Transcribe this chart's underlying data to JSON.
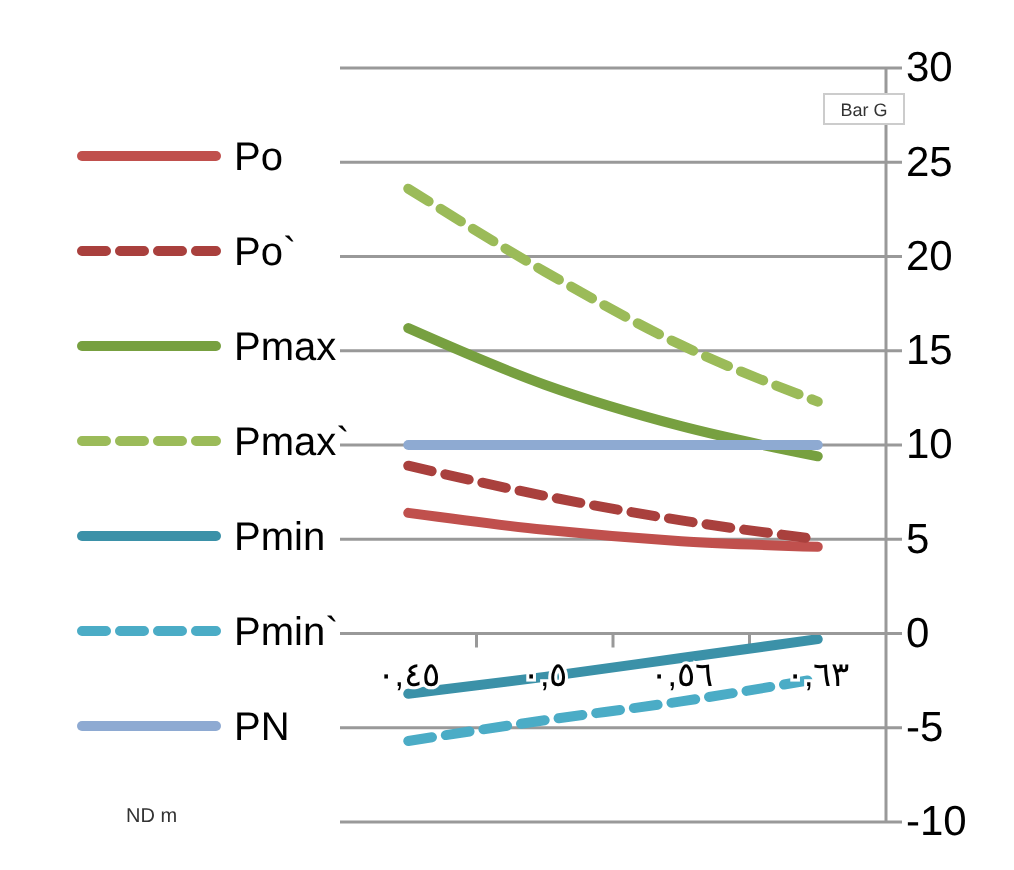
{
  "chart_data": {
    "type": "line",
    "ylabel": "Bar G",
    "annotations": [
      "ND m"
    ],
    "categories": [
      "٠,٤٥",
      "٠,٥",
      "٠,٥٦",
      "٠,٦٣"
    ],
    "series": [
      {
        "name": "Po",
        "color": "#c0504d",
        "line_style": "solid",
        "values": [
          6.4,
          5.5,
          4.9,
          4.6
        ]
      },
      {
        "name": "Po`",
        "color": "#a9403d",
        "line_style": "dashed",
        "values": [
          8.9,
          7.3,
          6.0,
          5.0
        ]
      },
      {
        "name": "Pmax",
        "color": "#77a040",
        "line_style": "solid",
        "values": [
          16.2,
          13.2,
          11.0,
          9.4
        ]
      },
      {
        "name": "Pmax`",
        "color": "#9bbb59",
        "line_style": "dashed",
        "values": [
          23.6,
          19.2,
          15.3,
          12.3
        ]
      },
      {
        "name": "Pmin",
        "color": "#3b91a8",
        "line_style": "solid",
        "values": [
          -3.2,
          -2.3,
          -1.3,
          -0.3
        ]
      },
      {
        "name": "Pmin`",
        "color": "#4bacc6",
        "line_style": "dashed",
        "values": [
          -5.7,
          -4.6,
          -3.6,
          -2.4
        ]
      },
      {
        "name": "PN",
        "color": "#8eaad2",
        "line_style": "solid",
        "values": [
          10,
          10,
          10,
          10
        ]
      }
    ],
    "ylim": [
      -10,
      30
    ],
    "yticks": [
      -10,
      -5,
      0,
      5,
      10,
      15,
      20,
      25,
      30
    ],
    "grid": "y",
    "legend": "left",
    "marker": "none"
  }
}
